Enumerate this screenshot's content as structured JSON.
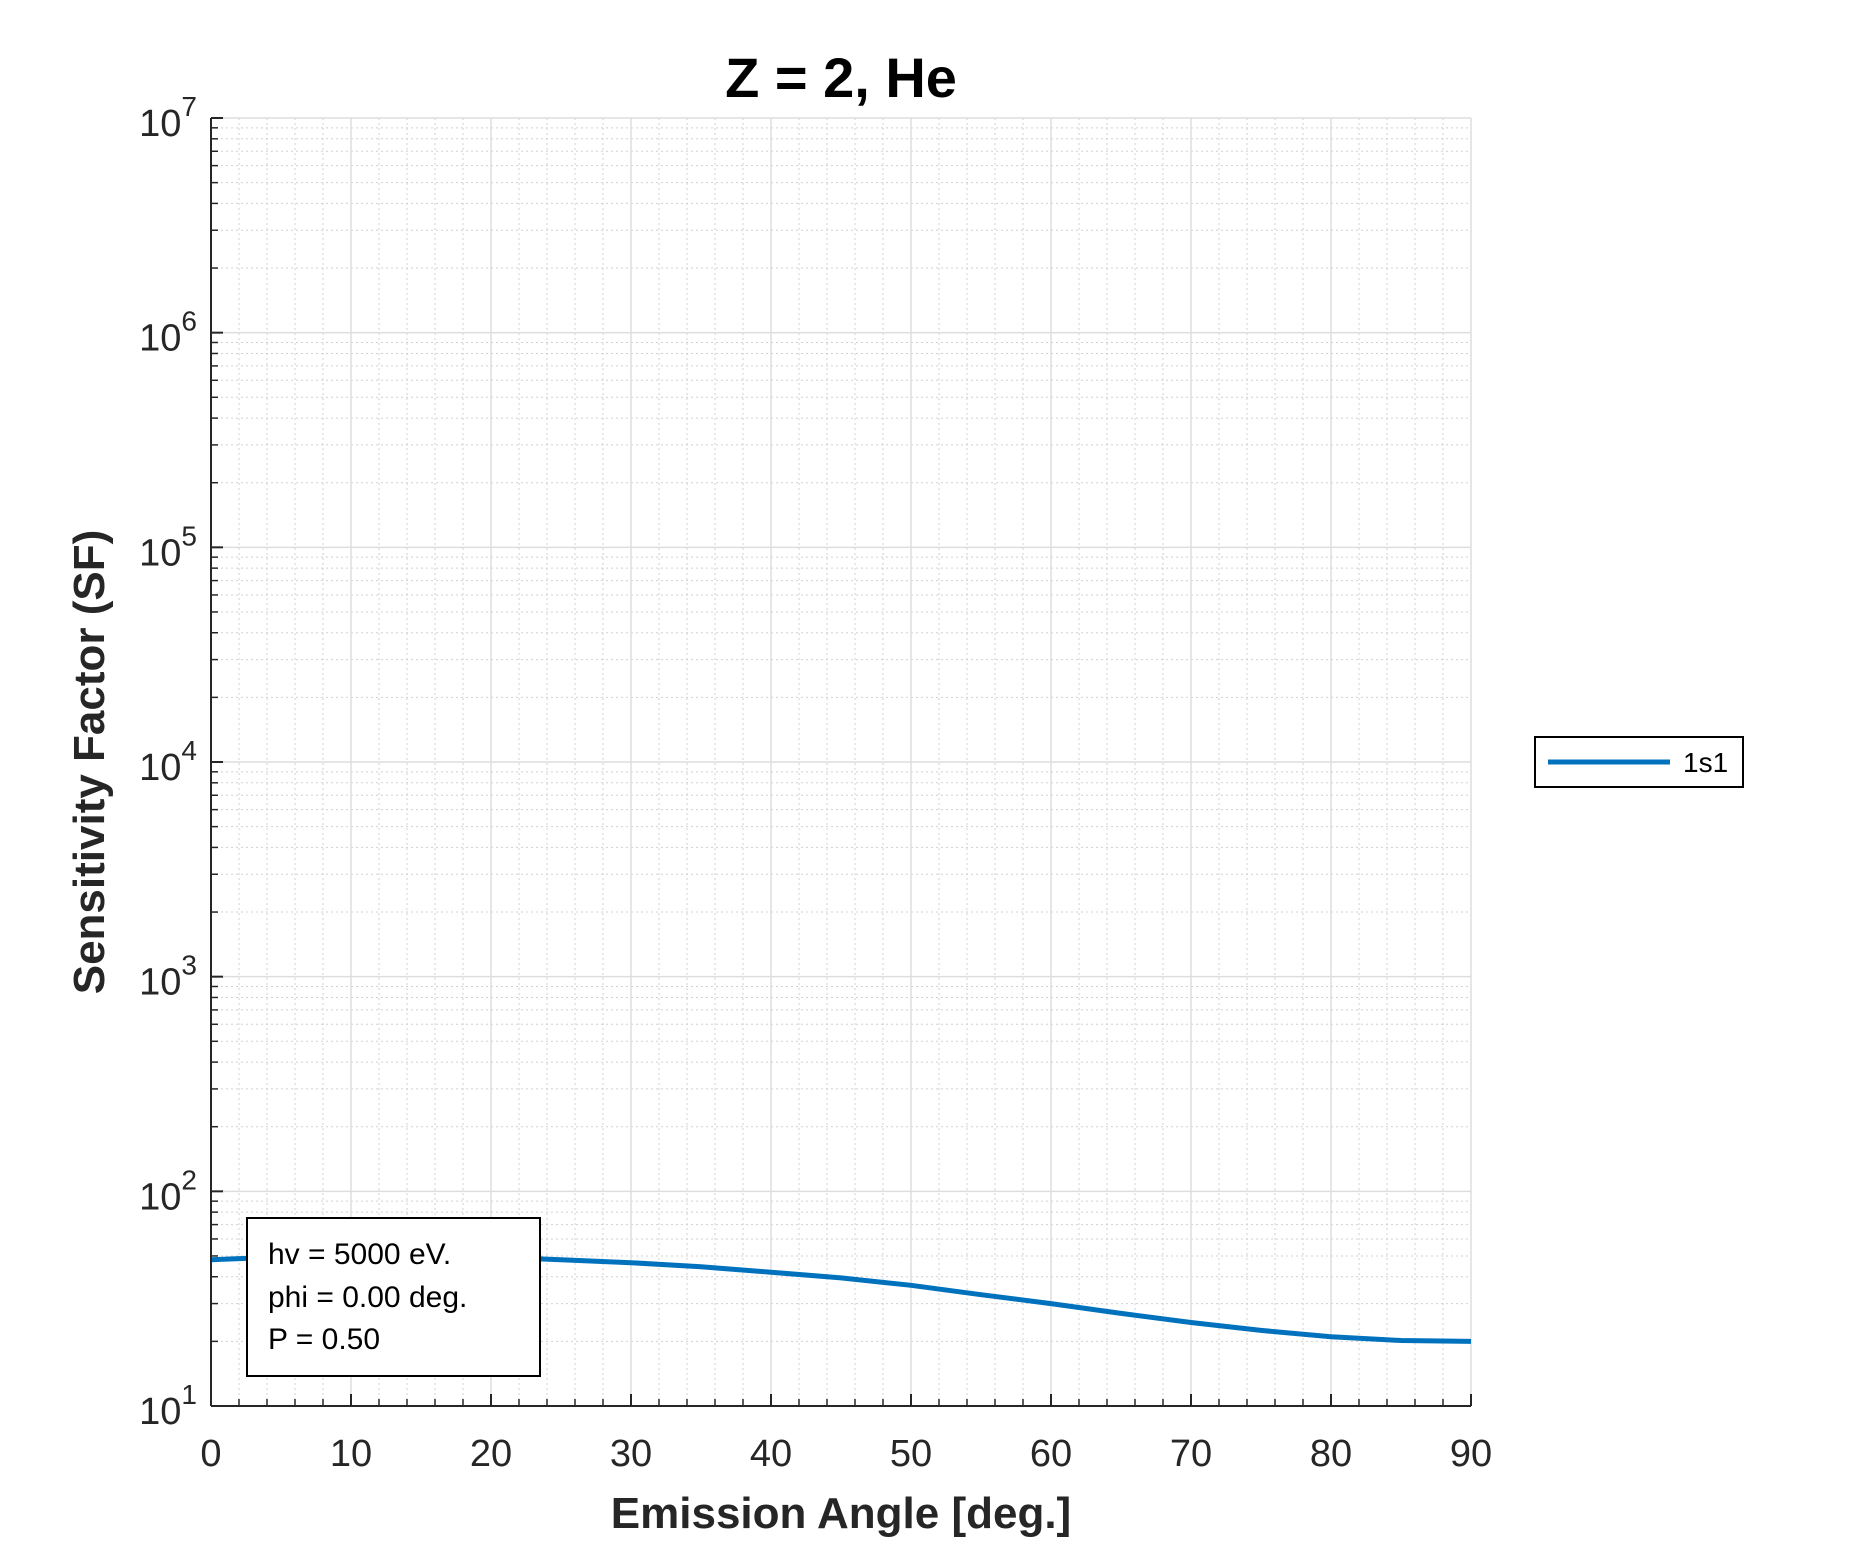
{
  "chart_data": {
    "type": "line",
    "title": "Z = 2, He",
    "xlabel": "Emission Angle [deg.]",
    "ylabel": "Sensitivity Factor (SF)",
    "xlim": [
      0,
      90
    ],
    "ylim": [
      10,
      10000000
    ],
    "yscale": "log",
    "grid": true,
    "minor_grid": true,
    "legend_position": "outside-right",
    "x_ticks": [
      "0",
      "10",
      "20",
      "30",
      "40",
      "50",
      "60",
      "70",
      "80",
      "90"
    ],
    "y_tick_bases": [
      "10",
      "10",
      "10",
      "10",
      "10",
      "10",
      "10"
    ],
    "y_tick_exponents": [
      "1",
      "2",
      "3",
      "4",
      "5",
      "6",
      "7"
    ],
    "series": [
      {
        "name": "1s1",
        "color": "#0072BD",
        "x": [
          0,
          5,
          10,
          15,
          20,
          25,
          30,
          35,
          40,
          45,
          50,
          55,
          60,
          65,
          70,
          75,
          80,
          85,
          90
        ],
        "y": [
          48,
          49.5,
          50,
          50,
          49.5,
          48,
          46.5,
          44.5,
          42,
          39.5,
          36.5,
          33,
          30,
          27,
          24.5,
          22.5,
          21,
          20.2,
          20
        ]
      }
    ],
    "annotation": [
      "hv = 5000 eV.",
      "phi = 0.00 deg.",
      "P = 0.50"
    ]
  }
}
